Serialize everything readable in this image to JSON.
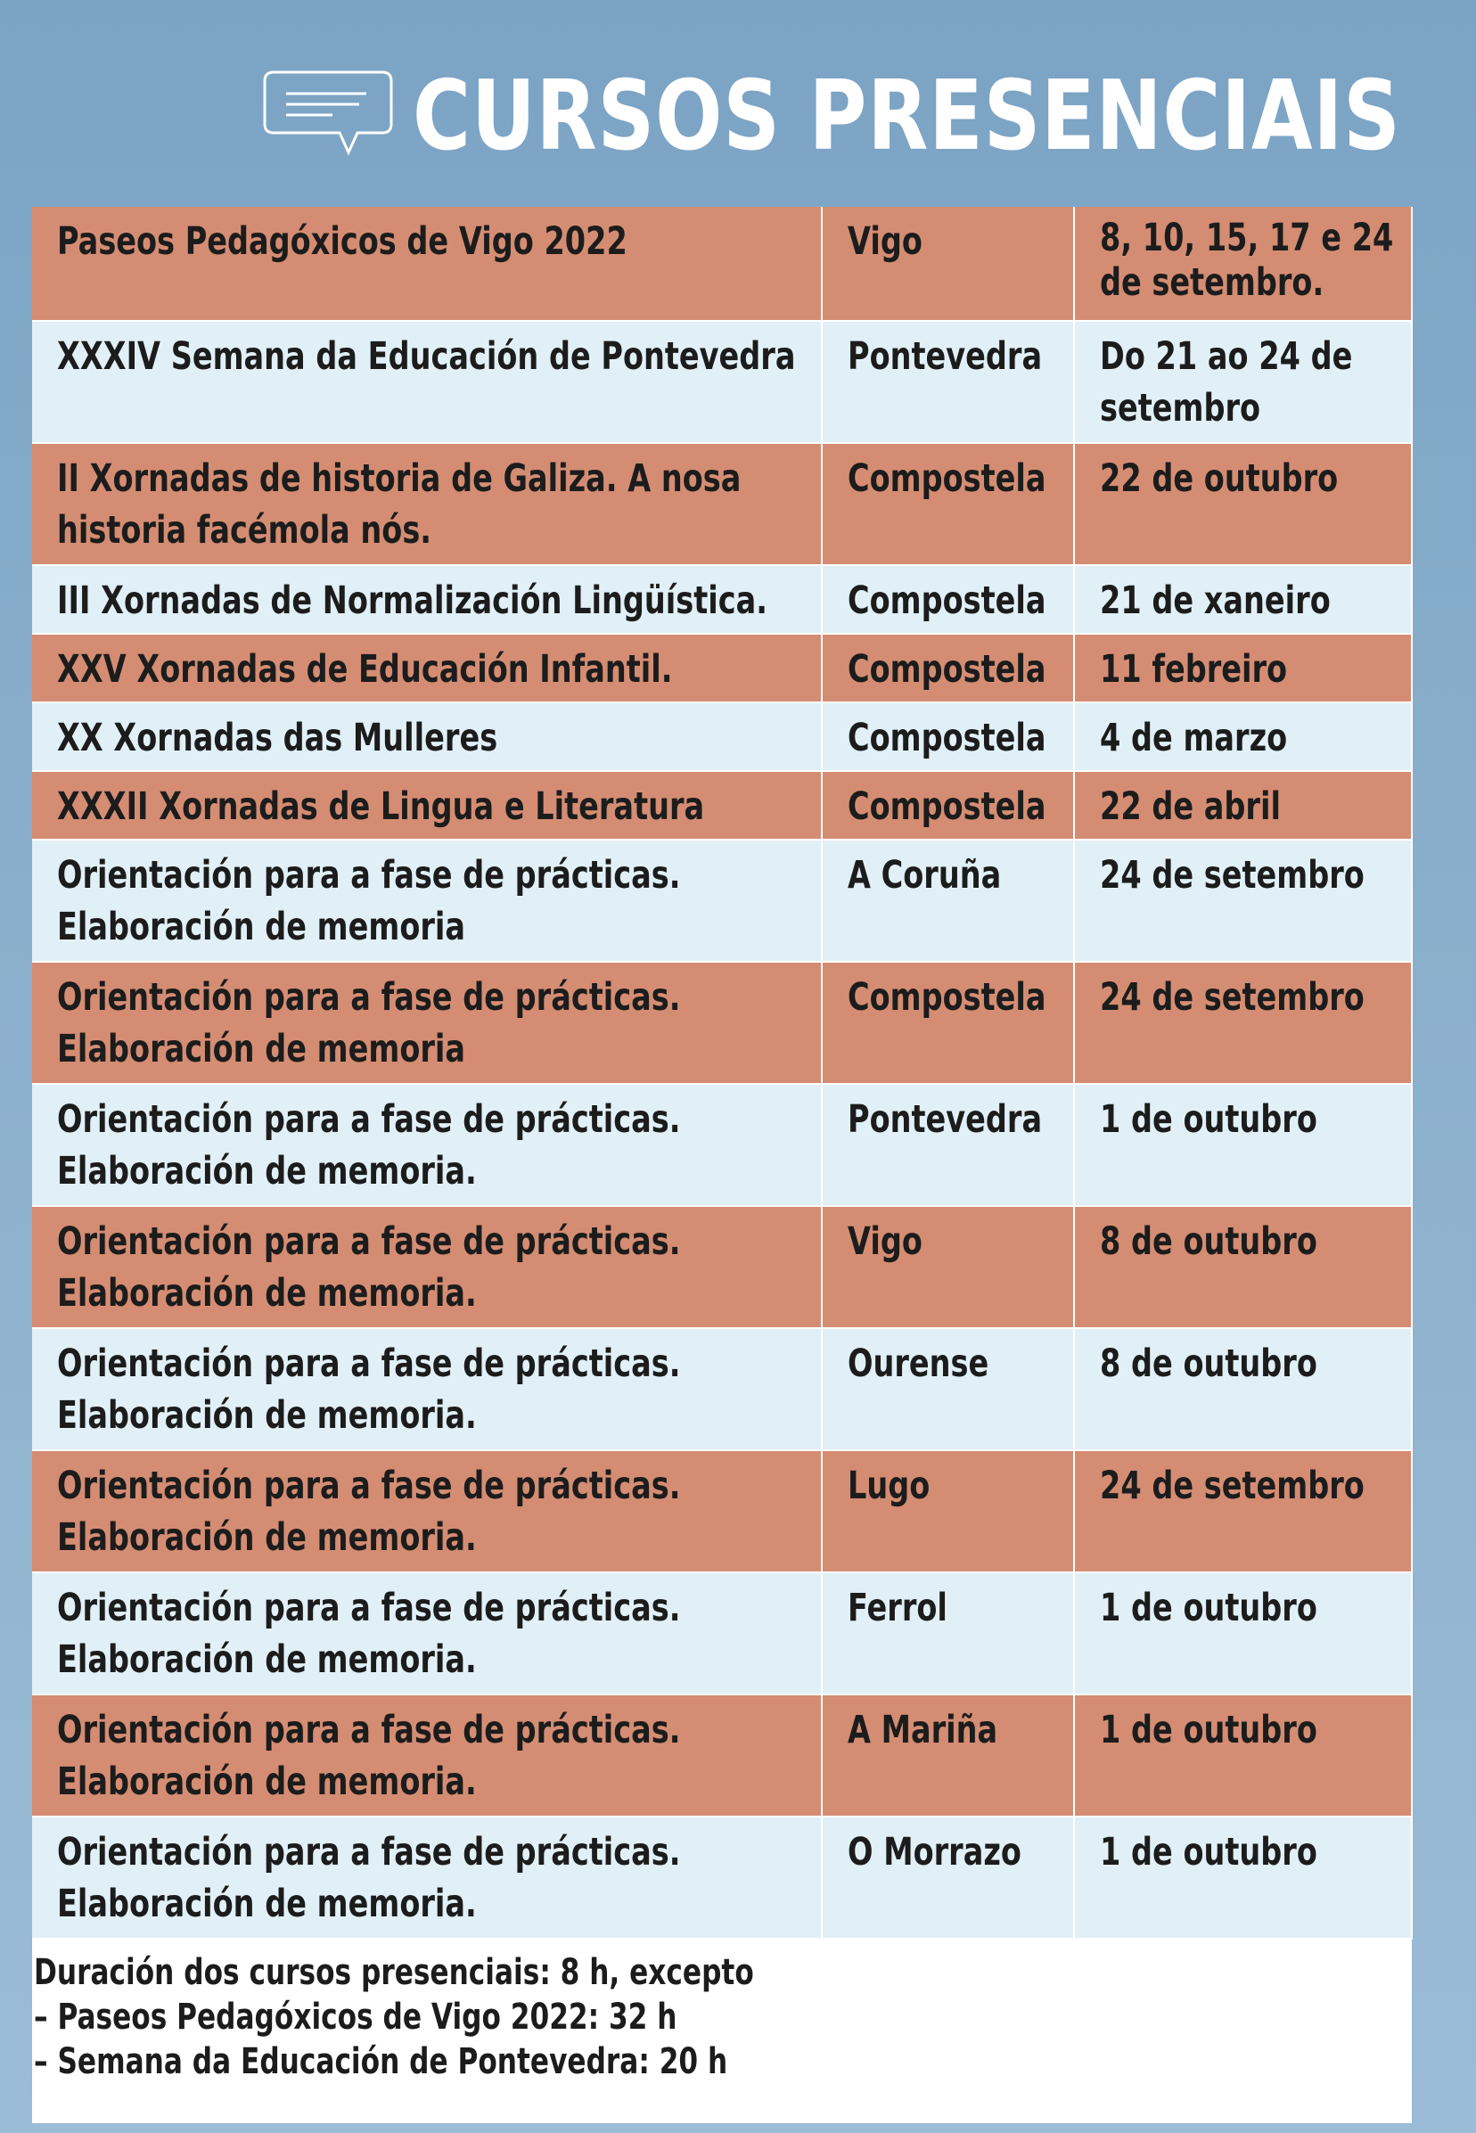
{
  "header": {
    "title": "CURSOS PRESENCIAIS",
    "icon": "chat-bubble-icon"
  },
  "colors": {
    "orange_row": "#d48d73",
    "blue_row": "#e1f0f6",
    "title": "#ffffff"
  },
  "rows": [
    {
      "course": "Paseos Pedagóxicos de Vigo 2022",
      "place": "Vigo",
      "date": "8, 10, 15, 17 e 24 de setembro."
    },
    {
      "course": "XXXIV Semana da Educación de Pontevedra",
      "place": "Pontevedra",
      "date": "Do 21 ao 24 de setembro"
    },
    {
      "course": "II Xornadas de historia de Galiza. A nosa historia facémola nós.",
      "place": "Compostela",
      "date": "22 de outubro"
    },
    {
      "course": "III Xornadas de Normalización Lingüística.",
      "place": "Compostela",
      "date": "21 de xaneiro"
    },
    {
      "course": "XXV Xornadas de Educación Infantil.",
      "place": "Compostela",
      "date": "11 febreiro"
    },
    {
      "course": "XX Xornadas das Mulleres",
      "place": "Compostela",
      "date": "4 de marzo"
    },
    {
      "course": "XXXII Xornadas de Lingua e Literatura",
      "place": "Compostela",
      "date": "22 de abril"
    },
    {
      "course": "Orientación para a fase de prácticas. Elaboración de memoria",
      "place": "A Coruña",
      "date": "24 de setembro"
    },
    {
      "course": "Orientación para a fase de prácticas. Elaboración de memoria",
      "place": "Compostela",
      "date": "24 de setembro"
    },
    {
      "course": "Orientación para a fase de prácticas. Elaboración de memoria.",
      "place": "Pontevedra",
      "date": "1 de outubro"
    },
    {
      "course": "Orientación para a fase de prácticas. Elaboración de memoria.",
      "place": "Vigo",
      "date": "8 de outubro"
    },
    {
      "course": "Orientación para a fase de prácticas. Elaboración de memoria.",
      "place": "Ourense",
      "date": "8 de outubro"
    },
    {
      "course": "Orientación para a fase de prácticas. Elaboración de memoria.",
      "place": "Lugo",
      "date": "24 de setembro"
    },
    {
      "course": "Orientación para a fase de prácticas. Elaboración de memoria.",
      "place": "Ferrol",
      "date": "1 de outubro"
    },
    {
      "course": "Orientación para a fase de prácticas. Elaboración de memoria.",
      "place": "A Mariña",
      "date": "1 de outubro"
    },
    {
      "course": "Orientación para a fase de prácticas. Elaboración de memoria.",
      "place": "O Morrazo",
      "date": "1 de outubro"
    }
  ],
  "footer": {
    "line1": "Duración dos cursos presenciais: 8 h, excepto",
    "line2": "– Paseos Pedagóxicos de Vigo 2022: 32 h",
    "line3": "– Semana da Educación de Pontevedra: 20 h"
  }
}
